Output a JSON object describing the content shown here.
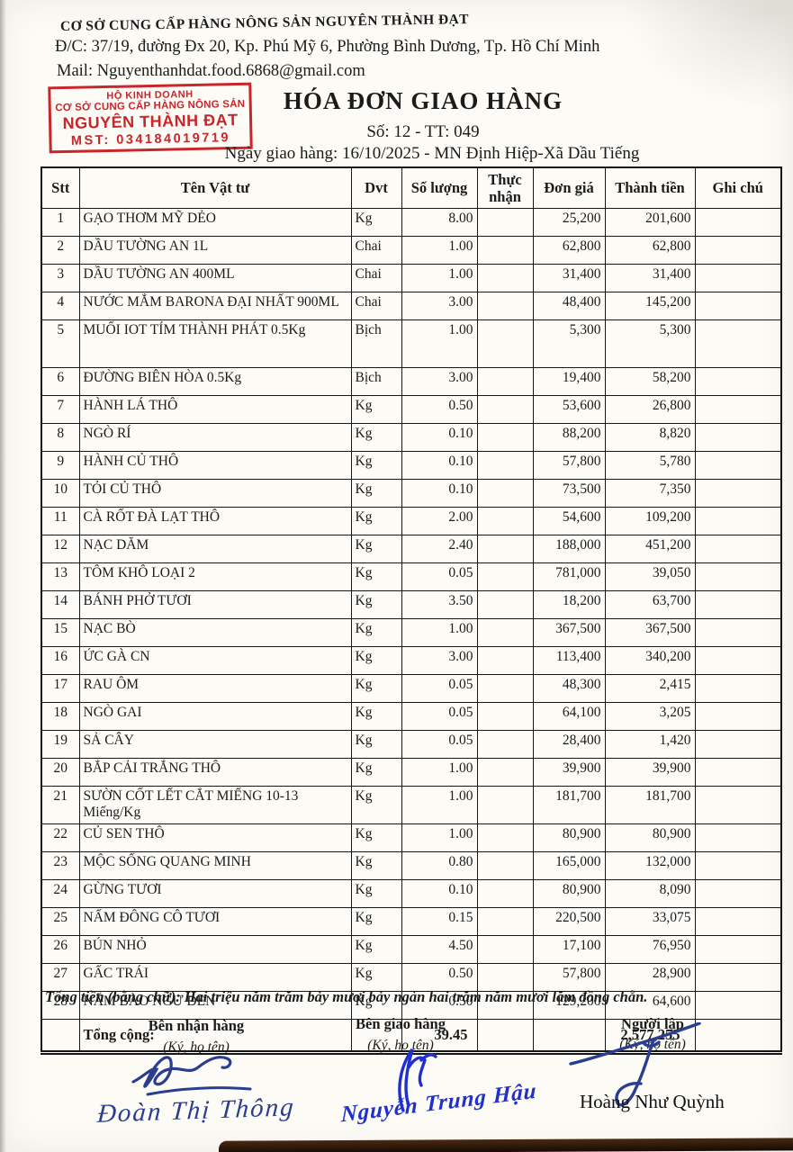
{
  "header": {
    "company_name": "CƠ SỞ CUNG CẤP HÀNG NÔNG SẢN NGUYÊN THÀNH ĐẠT",
    "address": "Đ/C: 37/19, đường Đx 20, Kp. Phú Mỹ 6, Phường Bình Dương, Tp. Hồ Chí Minh",
    "mail": "Mail: Nguyenthanhdat.food.6868@gmail.com",
    "stamp": {
      "line1": "HỘ KINH DOANH",
      "line2": "CƠ SỞ CUNG CẤP HÀNG NÔNG SẢN",
      "line3": "NGUYÊN THÀNH ĐẠT",
      "line4": "MST: 034184019719",
      "color": "#c8262b"
    },
    "title": "HÓA ĐƠN GIAO HÀNG",
    "doc_number": "Số: 12 - TT: 049",
    "delivery_date_line": "Ngày giao hàng: 16/10/2025 - MN Định Hiệp-Xã Dầu Tiếng"
  },
  "table": {
    "headers": [
      "Stt",
      "Tên Vật tư",
      "Dvt",
      "Số lượng",
      "Thực nhận",
      "Đơn giá",
      "Thành tiền",
      "Ghi chú"
    ],
    "rows": [
      [
        "1",
        "GẠO THƠM MỸ DẺO",
        "Kg",
        "8.00",
        "",
        "25,200",
        "201,600",
        ""
      ],
      [
        "2",
        "DẦU TƯỜNG AN 1L",
        "Chai",
        "1.00",
        "",
        "62,800",
        "62,800",
        ""
      ],
      [
        "3",
        "DẦU TƯỜNG AN 400ML",
        "Chai",
        "1.00",
        "",
        "31,400",
        "31,400",
        ""
      ],
      [
        "4",
        "NƯỚC MẮM BARONA ĐẠI NHẤT 900ML",
        "Chai",
        "3.00",
        "",
        "48,400",
        "145,200",
        ""
      ],
      [
        "5",
        "MUỐI IOT TÍM THÀNH PHÁT 0.5Kg",
        "Bịch",
        "1.00",
        "",
        "5,300",
        "5,300",
        ""
      ],
      [
        "6",
        "ĐƯỜNG BIÊN HÒA 0.5Kg",
        "Bịch",
        "3.00",
        "",
        "19,400",
        "58,200",
        ""
      ],
      [
        "7",
        "HÀNH LÁ THÔ",
        "Kg",
        "0.50",
        "",
        "53,600",
        "26,800",
        ""
      ],
      [
        "8",
        "NGÒ RÍ",
        "Kg",
        "0.10",
        "",
        "88,200",
        "8,820",
        ""
      ],
      [
        "9",
        "HÀNH CỦ THÔ",
        "Kg",
        "0.10",
        "",
        "57,800",
        "5,780",
        ""
      ],
      [
        "10",
        "TỎI CỦ THÔ",
        "Kg",
        "0.10",
        "",
        "73,500",
        "7,350",
        ""
      ],
      [
        "11",
        "CÀ RỐT ĐÀ LẠT THÔ",
        "Kg",
        "2.00",
        "",
        "54,600",
        "109,200",
        ""
      ],
      [
        "12",
        "NẠC DĂM",
        "Kg",
        "2.40",
        "",
        "188,000",
        "451,200",
        ""
      ],
      [
        "13",
        "TÔM KHÔ LOẠI 2",
        "Kg",
        "0.05",
        "",
        "781,000",
        "39,050",
        ""
      ],
      [
        "14",
        "BÁNH PHỞ TƯƠI",
        "Kg",
        "3.50",
        "",
        "18,200",
        "63,700",
        ""
      ],
      [
        "15",
        "NẠC BÒ",
        "Kg",
        "1.00",
        "",
        "367,500",
        "367,500",
        ""
      ],
      [
        "16",
        "ỨC GÀ CN",
        "Kg",
        "3.00",
        "",
        "113,400",
        "340,200",
        ""
      ],
      [
        "17",
        "RAU ÔM",
        "Kg",
        "0.05",
        "",
        "48,300",
        "2,415",
        ""
      ],
      [
        "18",
        "NGÒ GAI",
        "Kg",
        "0.05",
        "",
        "64,100",
        "3,205",
        ""
      ],
      [
        "19",
        "SẢ CÂY",
        "Kg",
        "0.05",
        "",
        "28,400",
        "1,420",
        ""
      ],
      [
        "20",
        "BẮP CẢI TRẮNG THÔ",
        "Kg",
        "1.00",
        "",
        "39,900",
        "39,900",
        ""
      ],
      [
        "21",
        "SƯỜN CỐT LẾT CẮT MIẾNG 10-13 Miếng/Kg",
        "Kg",
        "1.00",
        "",
        "181,700",
        "181,700",
        ""
      ],
      [
        "22",
        "CỦ SEN THÔ",
        "Kg",
        "1.00",
        "",
        "80,900",
        "80,900",
        ""
      ],
      [
        "23",
        "MỘC SỐNG QUANG MINH",
        "Kg",
        "0.80",
        "",
        "165,000",
        "132,000",
        ""
      ],
      [
        "24",
        "GỪNG TƯƠI",
        "Kg",
        "0.10",
        "",
        "80,900",
        "8,090",
        ""
      ],
      [
        "25",
        "NẤM ĐÔNG CÔ TƯƠI",
        "Kg",
        "0.15",
        "",
        "220,500",
        "33,075",
        ""
      ],
      [
        "26",
        "BÚN NHỎ",
        "Kg",
        "4.50",
        "",
        "17,100",
        "76,950",
        ""
      ],
      [
        "27",
        "GẤC TRÁI",
        "Kg",
        "0.50",
        "",
        "57,800",
        "28,900",
        ""
      ],
      [
        "28",
        "NẤM BÀO NGƯ ĐEN",
        "Kg",
        "0.50",
        "",
        "129,200",
        "64,600",
        ""
      ]
    ],
    "total_label": "Tổng cộng:",
    "total_quantity": "39.45",
    "total_amount": "2,577,255"
  },
  "footer": {
    "amount_in_words": "Tổng tiền (bằng chữ): Hai triệu năm trăm bảy mươi bảy ngàn hai trăm năm mươi lăm đồng chẵn.",
    "signatures": [
      {
        "role": "Bên nhận hàng",
        "note": "(Ký, họ tên)",
        "name": "Đoàn Thị Thông",
        "ink": "#2b3d8f"
      },
      {
        "role": "Bên giao hàng",
        "note": "(Ký, họ tên)",
        "name": "Nguyễn Trung Hậu",
        "ink": "#2030cf"
      },
      {
        "role": "Người lập",
        "note": "(Ký, họ tên)",
        "name": "Hoàng Như Quỳnh",
        "ink": "#2b3d8f"
      }
    ]
  }
}
